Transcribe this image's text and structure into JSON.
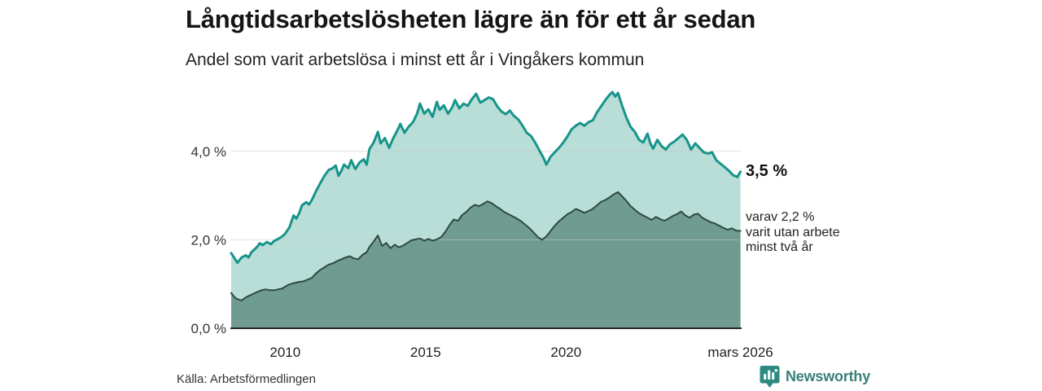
{
  "header": {
    "title": "Långtidsarbetslösheten lägre än för ett år sedan",
    "subtitle": "Andel som varit arbetslösa i minst ett år i Vingåkers kommun"
  },
  "footer": {
    "source": "Källa: Arbetsförmedlingen",
    "brand": "Newsworthy"
  },
  "colors": {
    "line_1year": "#17948a",
    "fill_1year": "#b8ded7",
    "line_2year": "#2e4a42",
    "fill_2year": "#6f9b91",
    "grid": "#c9c9c9",
    "baseline": "#2b2b2b",
    "tick_text": "#333333",
    "brand_teal": "#2e8a80"
  },
  "chart_data": {
    "type": "area",
    "title": "Långtidsarbetslösheten lägre än för ett år sedan",
    "subtitle": "Andel som varit arbetslösa i minst ett år i Vingåkers kommun",
    "x_domain": [
      2008.05,
      2026.25
    ],
    "y_domain": [
      0,
      5.6
    ],
    "grid": "horizontal-only",
    "x_axis": {
      "ticks": [
        {
          "year": 2010,
          "label": "2010"
        },
        {
          "year": 2015,
          "label": "2015"
        },
        {
          "year": 2020,
          "label": "2020"
        },
        {
          "year": 2026.21,
          "label": "mars 2026"
        }
      ]
    },
    "y_axis": {
      "ticks": [
        {
          "value": 0,
          "label": "0,0 %"
        },
        {
          "value": 2,
          "label": "2,0 %"
        },
        {
          "value": 4,
          "label": "4,0 %"
        }
      ]
    },
    "annotations": [
      {
        "text": "3,5 %",
        "bold": true
      },
      {
        "text": "varav 2,2 %\nvarit utan arbete\nminst två år",
        "bold": false
      }
    ],
    "series": [
      {
        "name": "Andel arbetslösa minst ett år",
        "end_label": "3,5 %",
        "color": "#17948a",
        "fill": "#b8ded7",
        "points": [
          [
            2008.08,
            1.7
          ],
          [
            2008.2,
            1.58
          ],
          [
            2008.3,
            1.48
          ],
          [
            2008.45,
            1.6
          ],
          [
            2008.6,
            1.65
          ],
          [
            2008.7,
            1.6
          ],
          [
            2008.8,
            1.72
          ],
          [
            2009.0,
            1.84
          ],
          [
            2009.1,
            1.92
          ],
          [
            2009.2,
            1.88
          ],
          [
            2009.35,
            1.95
          ],
          [
            2009.5,
            1.9
          ],
          [
            2009.6,
            1.97
          ],
          [
            2009.75,
            2.02
          ],
          [
            2009.9,
            2.08
          ],
          [
            2010.0,
            2.14
          ],
          [
            2010.15,
            2.28
          ],
          [
            2010.3,
            2.55
          ],
          [
            2010.4,
            2.48
          ],
          [
            2010.5,
            2.6
          ],
          [
            2010.6,
            2.78
          ],
          [
            2010.75,
            2.85
          ],
          [
            2010.85,
            2.8
          ],
          [
            2010.95,
            2.9
          ],
          [
            2011.1,
            3.1
          ],
          [
            2011.25,
            3.28
          ],
          [
            2011.4,
            3.45
          ],
          [
            2011.55,
            3.58
          ],
          [
            2011.7,
            3.62
          ],
          [
            2011.8,
            3.68
          ],
          [
            2011.9,
            3.45
          ],
          [
            2012.0,
            3.56
          ],
          [
            2012.1,
            3.7
          ],
          [
            2012.25,
            3.62
          ],
          [
            2012.35,
            3.8
          ],
          [
            2012.5,
            3.6
          ],
          [
            2012.65,
            3.75
          ],
          [
            2012.8,
            3.82
          ],
          [
            2012.9,
            3.7
          ],
          [
            2013.0,
            4.05
          ],
          [
            2013.15,
            4.2
          ],
          [
            2013.3,
            4.44
          ],
          [
            2013.4,
            4.18
          ],
          [
            2013.55,
            4.3
          ],
          [
            2013.7,
            4.08
          ],
          [
            2013.85,
            4.3
          ],
          [
            2014.0,
            4.48
          ],
          [
            2014.1,
            4.62
          ],
          [
            2014.25,
            4.42
          ],
          [
            2014.4,
            4.56
          ],
          [
            2014.55,
            4.66
          ],
          [
            2014.7,
            4.86
          ],
          [
            2014.8,
            5.08
          ],
          [
            2014.95,
            4.85
          ],
          [
            2015.1,
            4.95
          ],
          [
            2015.25,
            4.78
          ],
          [
            2015.4,
            5.12
          ],
          [
            2015.5,
            4.94
          ],
          [
            2015.65,
            5.04
          ],
          [
            2015.8,
            4.85
          ],
          [
            2015.95,
            5.0
          ],
          [
            2016.05,
            5.16
          ],
          [
            2016.2,
            4.97
          ],
          [
            2016.35,
            5.08
          ],
          [
            2016.5,
            5.03
          ],
          [
            2016.65,
            5.18
          ],
          [
            2016.8,
            5.3
          ],
          [
            2016.95,
            5.1
          ],
          [
            2017.1,
            5.16
          ],
          [
            2017.25,
            5.22
          ],
          [
            2017.4,
            5.18
          ],
          [
            2017.55,
            5.02
          ],
          [
            2017.7,
            4.9
          ],
          [
            2017.85,
            4.84
          ],
          [
            2018.0,
            4.92
          ],
          [
            2018.15,
            4.8
          ],
          [
            2018.3,
            4.72
          ],
          [
            2018.45,
            4.58
          ],
          [
            2018.6,
            4.42
          ],
          [
            2018.75,
            4.35
          ],
          [
            2018.9,
            4.2
          ],
          [
            2019.05,
            4.02
          ],
          [
            2019.2,
            3.85
          ],
          [
            2019.3,
            3.7
          ],
          [
            2019.45,
            3.88
          ],
          [
            2019.6,
            3.98
          ],
          [
            2019.75,
            4.08
          ],
          [
            2019.9,
            4.2
          ],
          [
            2020.05,
            4.34
          ],
          [
            2020.2,
            4.5
          ],
          [
            2020.35,
            4.58
          ],
          [
            2020.5,
            4.64
          ],
          [
            2020.65,
            4.58
          ],
          [
            2020.8,
            4.66
          ],
          [
            2020.95,
            4.7
          ],
          [
            2021.1,
            4.88
          ],
          [
            2021.25,
            5.02
          ],
          [
            2021.4,
            5.16
          ],
          [
            2021.55,
            5.28
          ],
          [
            2021.65,
            5.34
          ],
          [
            2021.75,
            5.24
          ],
          [
            2021.85,
            5.32
          ],
          [
            2022.0,
            5.02
          ],
          [
            2022.15,
            4.76
          ],
          [
            2022.3,
            4.55
          ],
          [
            2022.45,
            4.44
          ],
          [
            2022.6,
            4.26
          ],
          [
            2022.75,
            4.2
          ],
          [
            2022.9,
            4.4
          ],
          [
            2023.0,
            4.18
          ],
          [
            2023.1,
            4.06
          ],
          [
            2023.25,
            4.26
          ],
          [
            2023.4,
            4.12
          ],
          [
            2023.55,
            4.04
          ],
          [
            2023.7,
            4.16
          ],
          [
            2023.85,
            4.22
          ],
          [
            2024.0,
            4.3
          ],
          [
            2024.15,
            4.38
          ],
          [
            2024.3,
            4.26
          ],
          [
            2024.45,
            4.04
          ],
          [
            2024.6,
            4.18
          ],
          [
            2024.75,
            4.08
          ],
          [
            2024.9,
            3.98
          ],
          [
            2025.05,
            3.95
          ],
          [
            2025.2,
            3.98
          ],
          [
            2025.35,
            3.8
          ],
          [
            2025.5,
            3.72
          ],
          [
            2025.65,
            3.64
          ],
          [
            2025.8,
            3.56
          ],
          [
            2025.95,
            3.46
          ],
          [
            2026.1,
            3.42
          ],
          [
            2026.21,
            3.54
          ]
        ]
      },
      {
        "name": "varav utan arbete minst två år",
        "end_label": "2,2 %",
        "color": "#2e4a42",
        "fill": "#6f9b91",
        "points": [
          [
            2008.08,
            0.8
          ],
          [
            2008.2,
            0.7
          ],
          [
            2008.3,
            0.66
          ],
          [
            2008.45,
            0.63
          ],
          [
            2008.6,
            0.7
          ],
          [
            2008.8,
            0.76
          ],
          [
            2009.0,
            0.82
          ],
          [
            2009.15,
            0.86
          ],
          [
            2009.3,
            0.88
          ],
          [
            2009.45,
            0.86
          ],
          [
            2009.6,
            0.86
          ],
          [
            2009.75,
            0.88
          ],
          [
            2009.9,
            0.9
          ],
          [
            2010.1,
            0.98
          ],
          [
            2010.3,
            1.02
          ],
          [
            2010.5,
            1.05
          ],
          [
            2010.65,
            1.06
          ],
          [
            2010.8,
            1.1
          ],
          [
            2010.95,
            1.14
          ],
          [
            2011.1,
            1.24
          ],
          [
            2011.25,
            1.32
          ],
          [
            2011.4,
            1.38
          ],
          [
            2011.55,
            1.44
          ],
          [
            2011.7,
            1.47
          ],
          [
            2011.85,
            1.52
          ],
          [
            2012.0,
            1.56
          ],
          [
            2012.15,
            1.6
          ],
          [
            2012.3,
            1.63
          ],
          [
            2012.45,
            1.58
          ],
          [
            2012.6,
            1.56
          ],
          [
            2012.75,
            1.66
          ],
          [
            2012.9,
            1.72
          ],
          [
            2013.0,
            1.84
          ],
          [
            2013.15,
            1.96
          ],
          [
            2013.3,
            2.1
          ],
          [
            2013.45,
            1.86
          ],
          [
            2013.6,
            1.93
          ],
          [
            2013.75,
            1.81
          ],
          [
            2013.9,
            1.89
          ],
          [
            2014.05,
            1.83
          ],
          [
            2014.2,
            1.87
          ],
          [
            2014.35,
            1.93
          ],
          [
            2014.5,
            1.99
          ],
          [
            2014.65,
            2.01
          ],
          [
            2014.8,
            2.03
          ],
          [
            2014.95,
            1.98
          ],
          [
            2015.1,
            2.02
          ],
          [
            2015.25,
            1.98
          ],
          [
            2015.4,
            2.01
          ],
          [
            2015.55,
            2.06
          ],
          [
            2015.7,
            2.18
          ],
          [
            2015.85,
            2.33
          ],
          [
            2016.0,
            2.46
          ],
          [
            2016.15,
            2.43
          ],
          [
            2016.3,
            2.56
          ],
          [
            2016.45,
            2.63
          ],
          [
            2016.6,
            2.73
          ],
          [
            2016.75,
            2.79
          ],
          [
            2016.9,
            2.76
          ],
          [
            2017.05,
            2.81
          ],
          [
            2017.2,
            2.87
          ],
          [
            2017.35,
            2.83
          ],
          [
            2017.5,
            2.76
          ],
          [
            2017.65,
            2.7
          ],
          [
            2017.8,
            2.63
          ],
          [
            2017.95,
            2.58
          ],
          [
            2018.1,
            2.53
          ],
          [
            2018.25,
            2.48
          ],
          [
            2018.4,
            2.42
          ],
          [
            2018.55,
            2.34
          ],
          [
            2018.7,
            2.26
          ],
          [
            2018.85,
            2.16
          ],
          [
            2019.0,
            2.06
          ],
          [
            2019.15,
            2.0
          ],
          [
            2019.3,
            2.08
          ],
          [
            2019.45,
            2.2
          ],
          [
            2019.6,
            2.32
          ],
          [
            2019.75,
            2.42
          ],
          [
            2019.9,
            2.5
          ],
          [
            2020.05,
            2.58
          ],
          [
            2020.2,
            2.63
          ],
          [
            2020.35,
            2.7
          ],
          [
            2020.5,
            2.66
          ],
          [
            2020.65,
            2.61
          ],
          [
            2020.8,
            2.65
          ],
          [
            2020.95,
            2.7
          ],
          [
            2021.1,
            2.78
          ],
          [
            2021.25,
            2.86
          ],
          [
            2021.4,
            2.9
          ],
          [
            2021.55,
            2.96
          ],
          [
            2021.7,
            3.03
          ],
          [
            2021.85,
            3.08
          ],
          [
            2022.0,
            2.98
          ],
          [
            2022.15,
            2.88
          ],
          [
            2022.3,
            2.76
          ],
          [
            2022.45,
            2.68
          ],
          [
            2022.6,
            2.6
          ],
          [
            2022.75,
            2.55
          ],
          [
            2022.9,
            2.5
          ],
          [
            2023.05,
            2.45
          ],
          [
            2023.2,
            2.52
          ],
          [
            2023.35,
            2.47
          ],
          [
            2023.5,
            2.43
          ],
          [
            2023.65,
            2.48
          ],
          [
            2023.8,
            2.54
          ],
          [
            2023.95,
            2.58
          ],
          [
            2024.1,
            2.64
          ],
          [
            2024.25,
            2.55
          ],
          [
            2024.4,
            2.5
          ],
          [
            2024.55,
            2.57
          ],
          [
            2024.7,
            2.59
          ],
          [
            2024.85,
            2.5
          ],
          [
            2025.0,
            2.45
          ],
          [
            2025.15,
            2.4
          ],
          [
            2025.3,
            2.37
          ],
          [
            2025.45,
            2.32
          ],
          [
            2025.6,
            2.27
          ],
          [
            2025.75,
            2.23
          ],
          [
            2025.9,
            2.26
          ],
          [
            2026.05,
            2.21
          ],
          [
            2026.21,
            2.2
          ]
        ]
      }
    ]
  }
}
